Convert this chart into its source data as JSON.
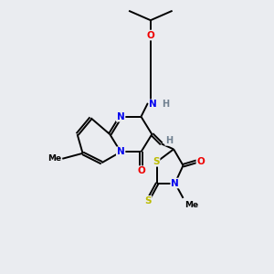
{
  "background_color": "#eaecf0",
  "bond_color": "#000000",
  "atom_colors": {
    "N": "#0000ee",
    "O": "#ee0000",
    "S": "#bbbb00",
    "H": "#708090",
    "C": "#000000"
  },
  "figsize": [
    3.0,
    3.0
  ],
  "dpi": 100
}
